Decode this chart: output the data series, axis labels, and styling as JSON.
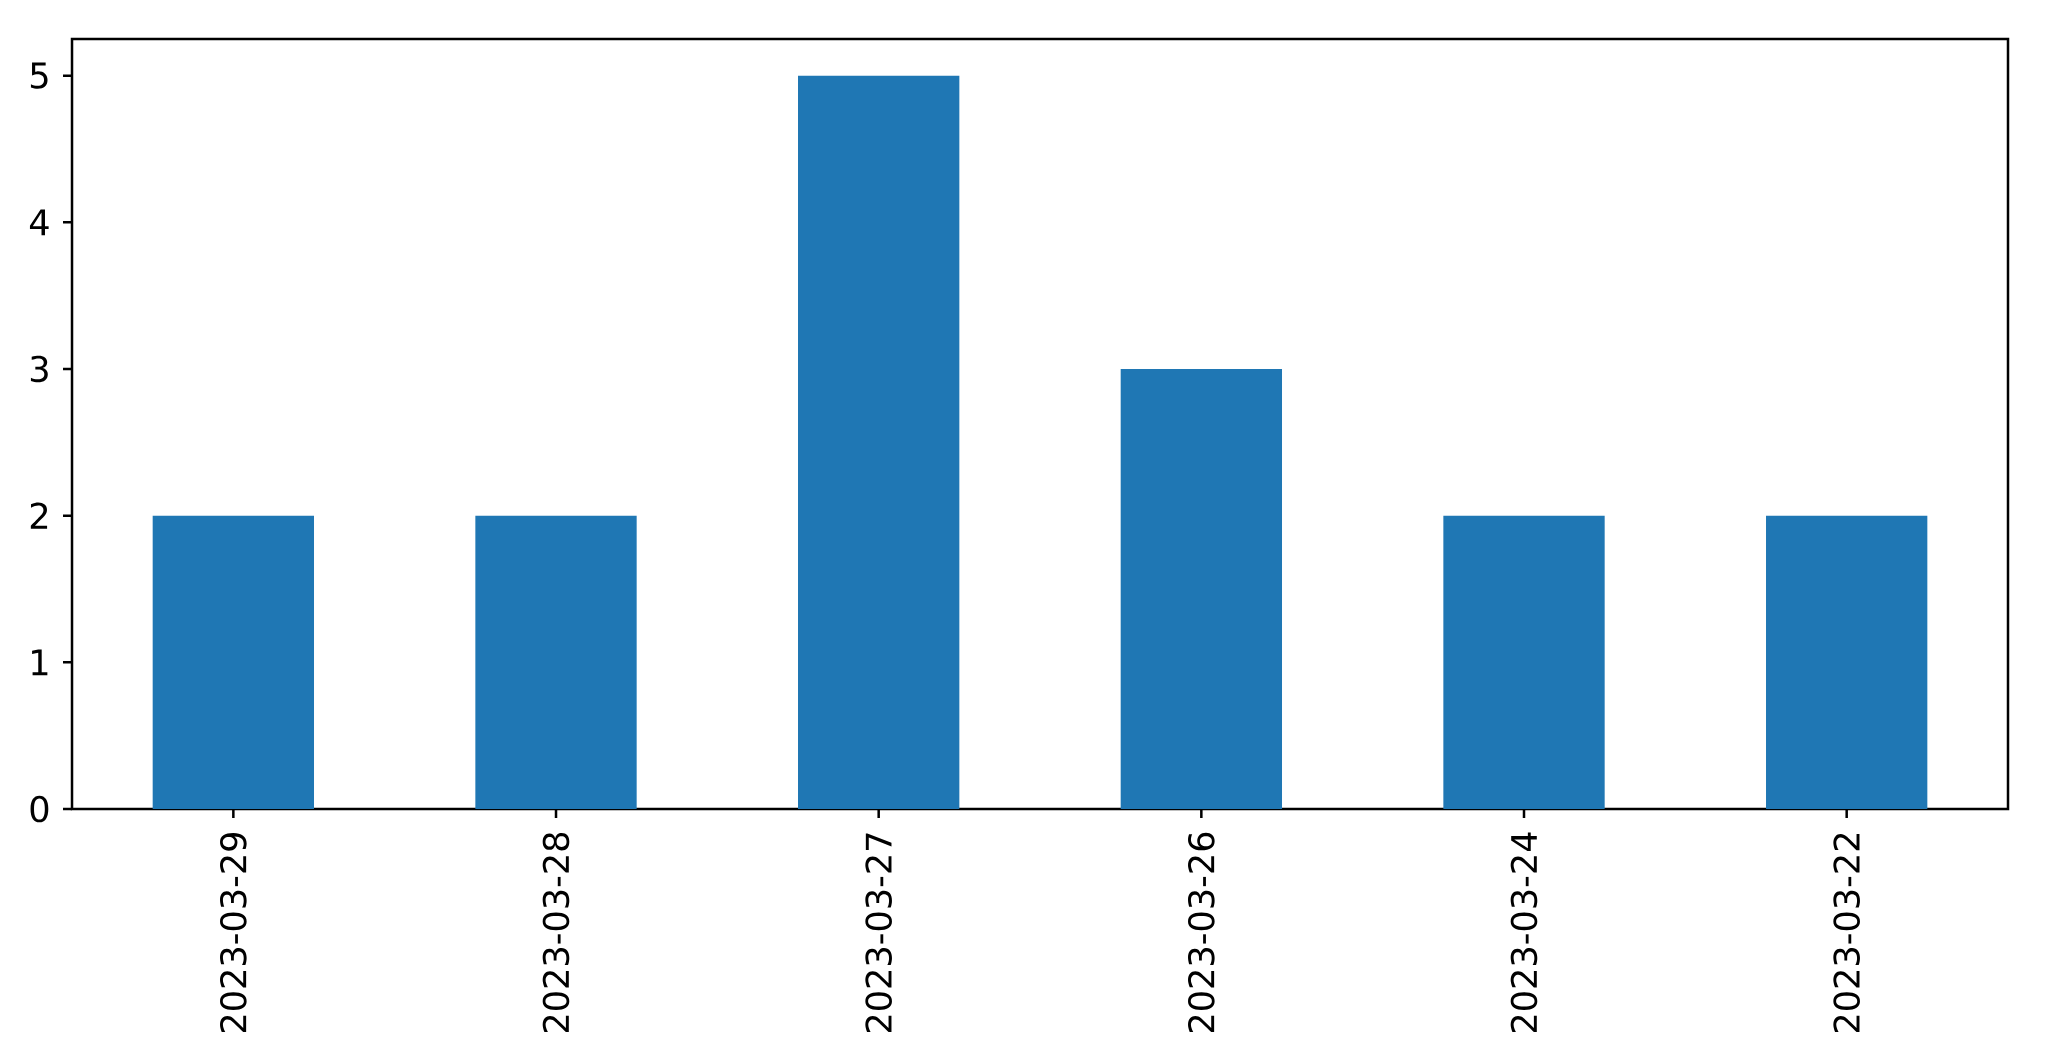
{
  "chart_data": {
    "type": "bar",
    "categories": [
      "2023-03-29",
      "2023-03-28",
      "2023-03-27",
      "2023-03-26",
      "2023-03-24",
      "2023-03-22"
    ],
    "values": [
      2,
      2,
      5,
      3,
      2,
      2
    ],
    "color": "#1f77b4",
    "ylim": [
      0,
      5.25
    ],
    "yticks": [
      0,
      1,
      2,
      3,
      4,
      5
    ]
  }
}
